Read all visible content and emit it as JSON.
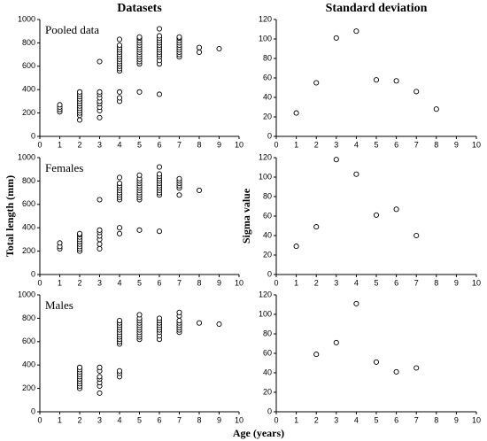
{
  "chart_data": [
    {
      "type": "scatter",
      "title": "Datasets",
      "annotation": "Pooled data",
      "color": "#000000",
      "x": [
        1,
        1,
        1,
        1,
        2,
        2,
        2,
        2,
        2,
        2,
        2,
        2,
        2,
        2,
        2,
        2,
        3,
        3,
        3,
        3,
        3,
        3,
        3,
        3,
        3,
        4,
        4,
        4,
        4,
        4,
        4,
        4,
        4,
        4,
        4,
        4,
        4,
        4,
        4,
        4,
        4,
        5,
        5,
        5,
        5,
        5,
        5,
        5,
        5,
        5,
        5,
        5,
        5,
        5,
        5,
        6,
        6,
        6,
        6,
        6,
        6,
        6,
        6,
        6,
        6,
        6,
        6,
        6,
        6,
        7,
        7,
        7,
        7,
        7,
        7,
        7,
        7,
        7,
        7,
        8,
        8,
        9
      ],
      "values": [
        210,
        230,
        250,
        270,
        140,
        180,
        200,
        220,
        240,
        260,
        280,
        300,
        320,
        340,
        360,
        380,
        160,
        220,
        250,
        280,
        300,
        330,
        360,
        380,
        640,
        300,
        330,
        380,
        560,
        580,
        600,
        620,
        640,
        660,
        680,
        700,
        720,
        740,
        760,
        780,
        830,
        380,
        620,
        640,
        660,
        680,
        700,
        720,
        740,
        760,
        780,
        800,
        820,
        840,
        850,
        360,
        620,
        650,
        680,
        700,
        720,
        740,
        760,
        780,
        800,
        820,
        840,
        860,
        920,
        680,
        700,
        720,
        740,
        760,
        780,
        800,
        820,
        840,
        850,
        720,
        760,
        750
      ],
      "xlim": [
        0,
        10
      ],
      "xticks": [
        0,
        1,
        2,
        3,
        4,
        5,
        6,
        7,
        8,
        9,
        10
      ],
      "ylim": [
        0,
        1000
      ],
      "yticks": [
        0,
        200,
        400,
        600,
        800,
        1000
      ]
    },
    {
      "type": "scatter",
      "title": "Standard deviation",
      "color": "#000000",
      "x": [
        1,
        2,
        3,
        4,
        5,
        6,
        7,
        8
      ],
      "values": [
        24,
        55,
        101,
        108,
        58,
        57,
        46,
        28
      ],
      "xlim": [
        0,
        10
      ],
      "xticks": [
        0,
        1,
        2,
        3,
        4,
        5,
        6,
        7,
        8,
        9,
        10
      ],
      "ylim": [
        0,
        120
      ],
      "yticks": [
        0,
        20,
        40,
        60,
        80,
        100,
        120
      ]
    },
    {
      "type": "scatter",
      "annotation": "Females",
      "ylabel": "Total length (mm)",
      "color": "#000000",
      "x": [
        1,
        1,
        1,
        2,
        2,
        2,
        2,
        2,
        2,
        2,
        2,
        2,
        3,
        3,
        3,
        3,
        3,
        3,
        3,
        4,
        4,
        4,
        4,
        4,
        4,
        4,
        4,
        4,
        4,
        4,
        5,
        5,
        5,
        5,
        5,
        5,
        5,
        5,
        5,
        5,
        5,
        5,
        6,
        6,
        6,
        6,
        6,
        6,
        6,
        6,
        6,
        6,
        6,
        6,
        7,
        7,
        7,
        7,
        7,
        7,
        8
      ],
      "values": [
        220,
        240,
        270,
        200,
        220,
        240,
        260,
        280,
        300,
        320,
        340,
        350,
        220,
        260,
        300,
        330,
        360,
        380,
        640,
        350,
        400,
        640,
        660,
        680,
        700,
        720,
        740,
        760,
        780,
        830,
        380,
        640,
        660,
        680,
        700,
        720,
        740,
        760,
        780,
        800,
        820,
        850,
        370,
        680,
        700,
        720,
        740,
        760,
        780,
        800,
        820,
        840,
        860,
        920,
        680,
        740,
        760,
        780,
        800,
        820,
        720
      ],
      "xlim": [
        0,
        10
      ],
      "xticks": [
        0,
        1,
        2,
        3,
        4,
        5,
        6,
        7,
        8,
        9,
        10
      ],
      "ylim": [
        0,
        1000
      ],
      "yticks": [
        0,
        200,
        400,
        600,
        800,
        1000
      ]
    },
    {
      "type": "scatter",
      "ylabel": "Sigma value",
      "color": "#000000",
      "x": [
        1,
        2,
        3,
        4,
        5,
        6,
        7
      ],
      "values": [
        29,
        49,
        118,
        103,
        61,
        67,
        40
      ],
      "xlim": [
        0,
        10
      ],
      "xticks": [
        0,
        1,
        2,
        3,
        4,
        5,
        6,
        7,
        8,
        9,
        10
      ],
      "ylim": [
        0,
        120
      ],
      "yticks": [
        0,
        20,
        40,
        60,
        80,
        100,
        120
      ]
    },
    {
      "type": "scatter",
      "annotation": "Males",
      "color": "#000000",
      "x": [
        2,
        2,
        2,
        2,
        2,
        2,
        2,
        2,
        2,
        2,
        3,
        3,
        3,
        3,
        3,
        3,
        3,
        4,
        4,
        4,
        4,
        4,
        4,
        4,
        4,
        4,
        4,
        4,
        4,
        4,
        4,
        5,
        5,
        5,
        5,
        5,
        5,
        5,
        5,
        5,
        5,
        5,
        6,
        6,
        6,
        6,
        6,
        6,
        6,
        6,
        6,
        7,
        7,
        7,
        7,
        7,
        7,
        7,
        7,
        8,
        9
      ],
      "values": [
        200,
        220,
        240,
        260,
        280,
        300,
        320,
        340,
        360,
        380,
        160,
        220,
        250,
        280,
        300,
        350,
        380,
        300,
        330,
        350,
        580,
        600,
        620,
        640,
        660,
        680,
        700,
        720,
        740,
        760,
        780,
        620,
        640,
        660,
        680,
        700,
        720,
        740,
        760,
        780,
        800,
        830,
        620,
        650,
        680,
        700,
        720,
        740,
        760,
        780,
        800,
        680,
        700,
        720,
        740,
        760,
        780,
        820,
        850,
        760,
        750
      ],
      "xlim": [
        0,
        10
      ],
      "xticks": [
        0,
        1,
        2,
        3,
        4,
        5,
        6,
        7,
        8,
        9,
        10
      ],
      "ylim": [
        0,
        1000
      ],
      "yticks": [
        0,
        200,
        400,
        600,
        800,
        1000
      ]
    },
    {
      "type": "scatter",
      "color": "#000000",
      "x": [
        2,
        3,
        4,
        5,
        6,
        7
      ],
      "values": [
        59,
        71,
        111,
        51,
        41,
        45
      ],
      "xlim": [
        0,
        10
      ],
      "xticks": [
        0,
        1,
        2,
        3,
        4,
        5,
        6,
        7,
        8,
        9,
        10
      ],
      "ylim": [
        0,
        120
      ],
      "yticks": [
        0,
        20,
        40,
        60,
        80,
        100,
        120
      ]
    }
  ],
  "xlabel": "Age (years)"
}
